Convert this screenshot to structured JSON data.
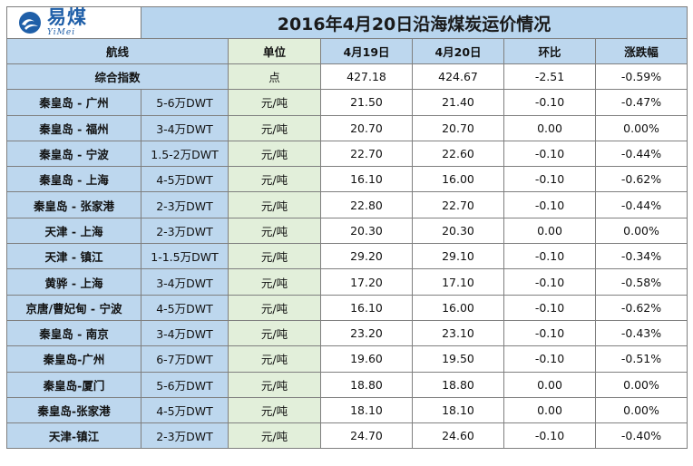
{
  "logo": {
    "cn": "易煤",
    "en": "YiMei"
  },
  "title": "2016年4月20日沿海煤炭运价情况",
  "headers": {
    "route": "航线",
    "unit": "单位",
    "prev_date": "4月19日",
    "curr_date": "4月20日",
    "change": "环比",
    "pct": "涨跌幅"
  },
  "index_row": {
    "label": "综合指数",
    "unit": "点",
    "prev": "427.18",
    "curr": "424.67",
    "change": "-2.51",
    "pct": "-0.59%"
  },
  "rows": [
    {
      "route": "秦皇岛 - 广州",
      "dwt": "5-6万DWT",
      "unit": "元/吨",
      "prev": "21.50",
      "curr": "21.40",
      "change": "-0.10",
      "pct": "-0.47%"
    },
    {
      "route": "秦皇岛 - 福州",
      "dwt": "3-4万DWT",
      "unit": "元/吨",
      "prev": "20.70",
      "curr": "20.70",
      "change": "0.00",
      "pct": "0.00%"
    },
    {
      "route": "秦皇岛 - 宁波",
      "dwt": "1.5-2万DWT",
      "unit": "元/吨",
      "prev": "22.70",
      "curr": "22.60",
      "change": "-0.10",
      "pct": "-0.44%"
    },
    {
      "route": "秦皇岛 - 上海",
      "dwt": "4-5万DWT",
      "unit": "元/吨",
      "prev": "16.10",
      "curr": "16.00",
      "change": "-0.10",
      "pct": "-0.62%"
    },
    {
      "route": "秦皇岛 - 张家港",
      "dwt": "2-3万DWT",
      "unit": "元/吨",
      "prev": "22.80",
      "curr": "22.70",
      "change": "-0.10",
      "pct": "-0.44%"
    },
    {
      "route": "天津 - 上海",
      "dwt": "2-3万DWT",
      "unit": "元/吨",
      "prev": "20.30",
      "curr": "20.30",
      "change": "0.00",
      "pct": "0.00%"
    },
    {
      "route": "天津 - 镇江",
      "dwt": "1-1.5万DWT",
      "unit": "元/吨",
      "prev": "29.20",
      "curr": "29.10",
      "change": "-0.10",
      "pct": "-0.34%"
    },
    {
      "route": "黄骅 - 上海",
      "dwt": "3-4万DWT",
      "unit": "元/吨",
      "prev": "17.20",
      "curr": "17.10",
      "change": "-0.10",
      "pct": "-0.58%"
    },
    {
      "route": "京唐/曹妃甸 - 宁波",
      "dwt": "4-5万DWT",
      "unit": "元/吨",
      "prev": "16.10",
      "curr": "16.00",
      "change": "-0.10",
      "pct": "-0.62%"
    },
    {
      "route": "秦皇岛 - 南京",
      "dwt": "3-4万DWT",
      "unit": "元/吨",
      "prev": "23.20",
      "curr": "23.10",
      "change": "-0.10",
      "pct": "-0.43%"
    },
    {
      "route": "秦皇岛-广州",
      "dwt": "6-7万DWT",
      "unit": "元/吨",
      "prev": "19.60",
      "curr": "19.50",
      "change": "-0.10",
      "pct": "-0.51%"
    },
    {
      "route": "秦皇岛-厦门",
      "dwt": "5-6万DWT",
      "unit": "元/吨",
      "prev": "18.80",
      "curr": "18.80",
      "change": "0.00",
      "pct": "0.00%"
    },
    {
      "route": "秦皇岛-张家港",
      "dwt": "4-5万DWT",
      "unit": "元/吨",
      "prev": "18.10",
      "curr": "18.10",
      "change": "0.00",
      "pct": "0.00%"
    },
    {
      "route": "天津-镇江",
      "dwt": "2-3万DWT",
      "unit": "元/吨",
      "prev": "24.70",
      "curr": "24.60",
      "change": "-0.10",
      "pct": "-0.40%"
    }
  ],
  "colors": {
    "title_bg": "#b8d5ee",
    "blue_cell": "#bdd7ee",
    "green_cell": "#e2efda",
    "logo_blue": "#1f5fa8"
  }
}
